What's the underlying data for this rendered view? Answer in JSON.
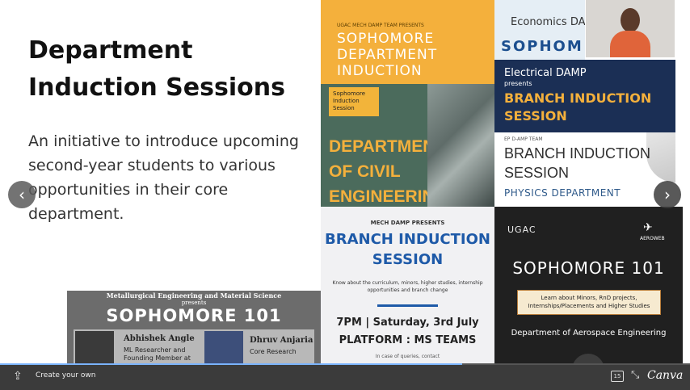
{
  "slide": {
    "title": "Department Induction Sessions",
    "description": "An initiative to introduce upcoming second-year students to various opportunities in their core department."
  },
  "posters": {
    "sophomore_induction": {
      "small_text": "UGAC MECH DAMP TEAM PRESENTS",
      "title": "SOPHOMORE DEPARTMENT INDUCTION"
    },
    "civil": {
      "tag": "Sophomore Induction Session",
      "title": "DEPARTMENT OF CIVIL ENGINEERING"
    },
    "mech": {
      "presents": "MECH DAMP PRESENTS",
      "title": "BRANCH INDUCTION SESSION",
      "details": "Know about the curriculum, minors, higher studies, internship opportunities and branch change",
      "time": "7PM | Saturday, 3rd July",
      "platform": "PLATFORM : MS TEAMS",
      "query": "In case of queries, contact"
    },
    "economics": {
      "dept": "Economics DA",
      "title": "SOPHOM"
    },
    "electrical": {
      "dept": "Electrical DAMP",
      "presents": "presents",
      "title": "BRANCH INDUCTION SESSION"
    },
    "physics": {
      "small": "EP D-AMP TEAM",
      "title": "BRANCH INDUCTION SESSION",
      "dept": "PHYSICS DEPARTMENT"
    },
    "aerospace": {
      "org": "UGAC",
      "logo_text": "AEROWEB",
      "title": "SOPHOMORE 101",
      "box_text": "Learn about Minors, RnD projects, Internships/Placements and Higher Studies",
      "dept": "Department of Aerospace Engineering"
    },
    "metallurgy": {
      "dept": "Metallurgical Engineering and Material Science",
      "presents": "presents",
      "title": "SOPHOMORE 101",
      "speaker1_name": "Abhishek Angle",
      "speaker1_role": "ML Researcher and Founding Member at",
      "speaker2_name": "Dhruv Anjaria",
      "speaker2_role": "Core Research"
    }
  },
  "toolbar": {
    "create_label": "Create your own",
    "page_counter": "15",
    "brand": "Canva",
    "progress": 0.67
  },
  "icons": {
    "prev": "chevron-left-icon",
    "next": "chevron-right-icon",
    "share": "share-icon",
    "collapse": "collapse-icon"
  }
}
